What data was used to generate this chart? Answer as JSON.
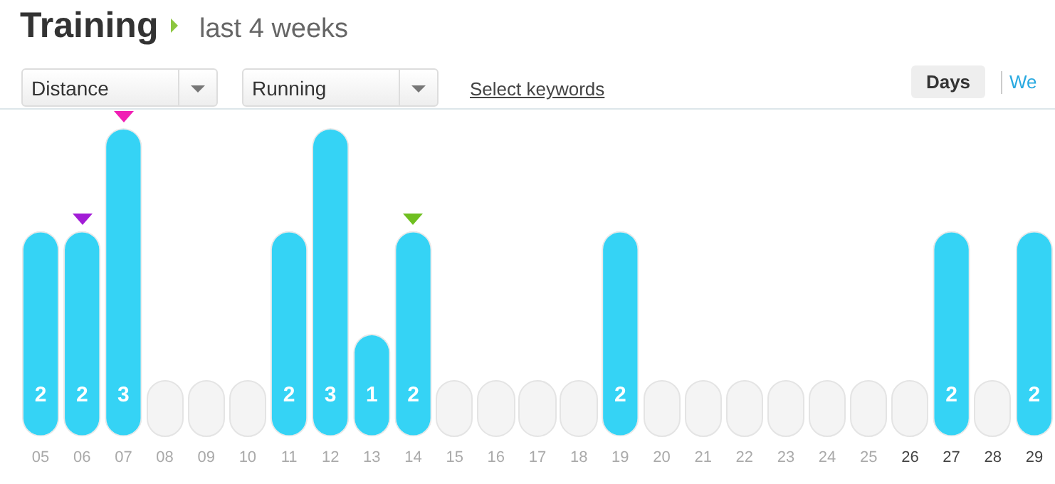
{
  "chart_data": {
    "type": "bar",
    "title": "Training",
    "subtitle": "last 4 weeks",
    "annotations": [
      "Distance",
      "Running",
      "Select keywords",
      "Days",
      "We"
    ],
    "categories": [
      "05",
      "06",
      "07",
      "08",
      "09",
      "10",
      "11",
      "12",
      "13",
      "14",
      "15",
      "16",
      "17",
      "18",
      "19",
      "20",
      "21",
      "22",
      "23",
      "24",
      "25",
      "26",
      "27",
      "28",
      "29"
    ],
    "values": [
      2,
      2,
      3,
      null,
      null,
      null,
      2,
      3,
      1,
      2,
      null,
      null,
      null,
      null,
      2,
      null,
      null,
      null,
      null,
      null,
      null,
      null,
      2,
      null,
      2
    ],
    "color": "#35d3f5",
    "value_labels": [
      "2",
      "2",
      "3",
      null,
      null,
      null,
      "2",
      "3",
      "1",
      "2",
      null,
      null,
      null,
      null,
      "2",
      null,
      null,
      null,
      null,
      null,
      null,
      null,
      "2",
      null,
      "2"
    ],
    "grid": false,
    "legend": false
  }
}
